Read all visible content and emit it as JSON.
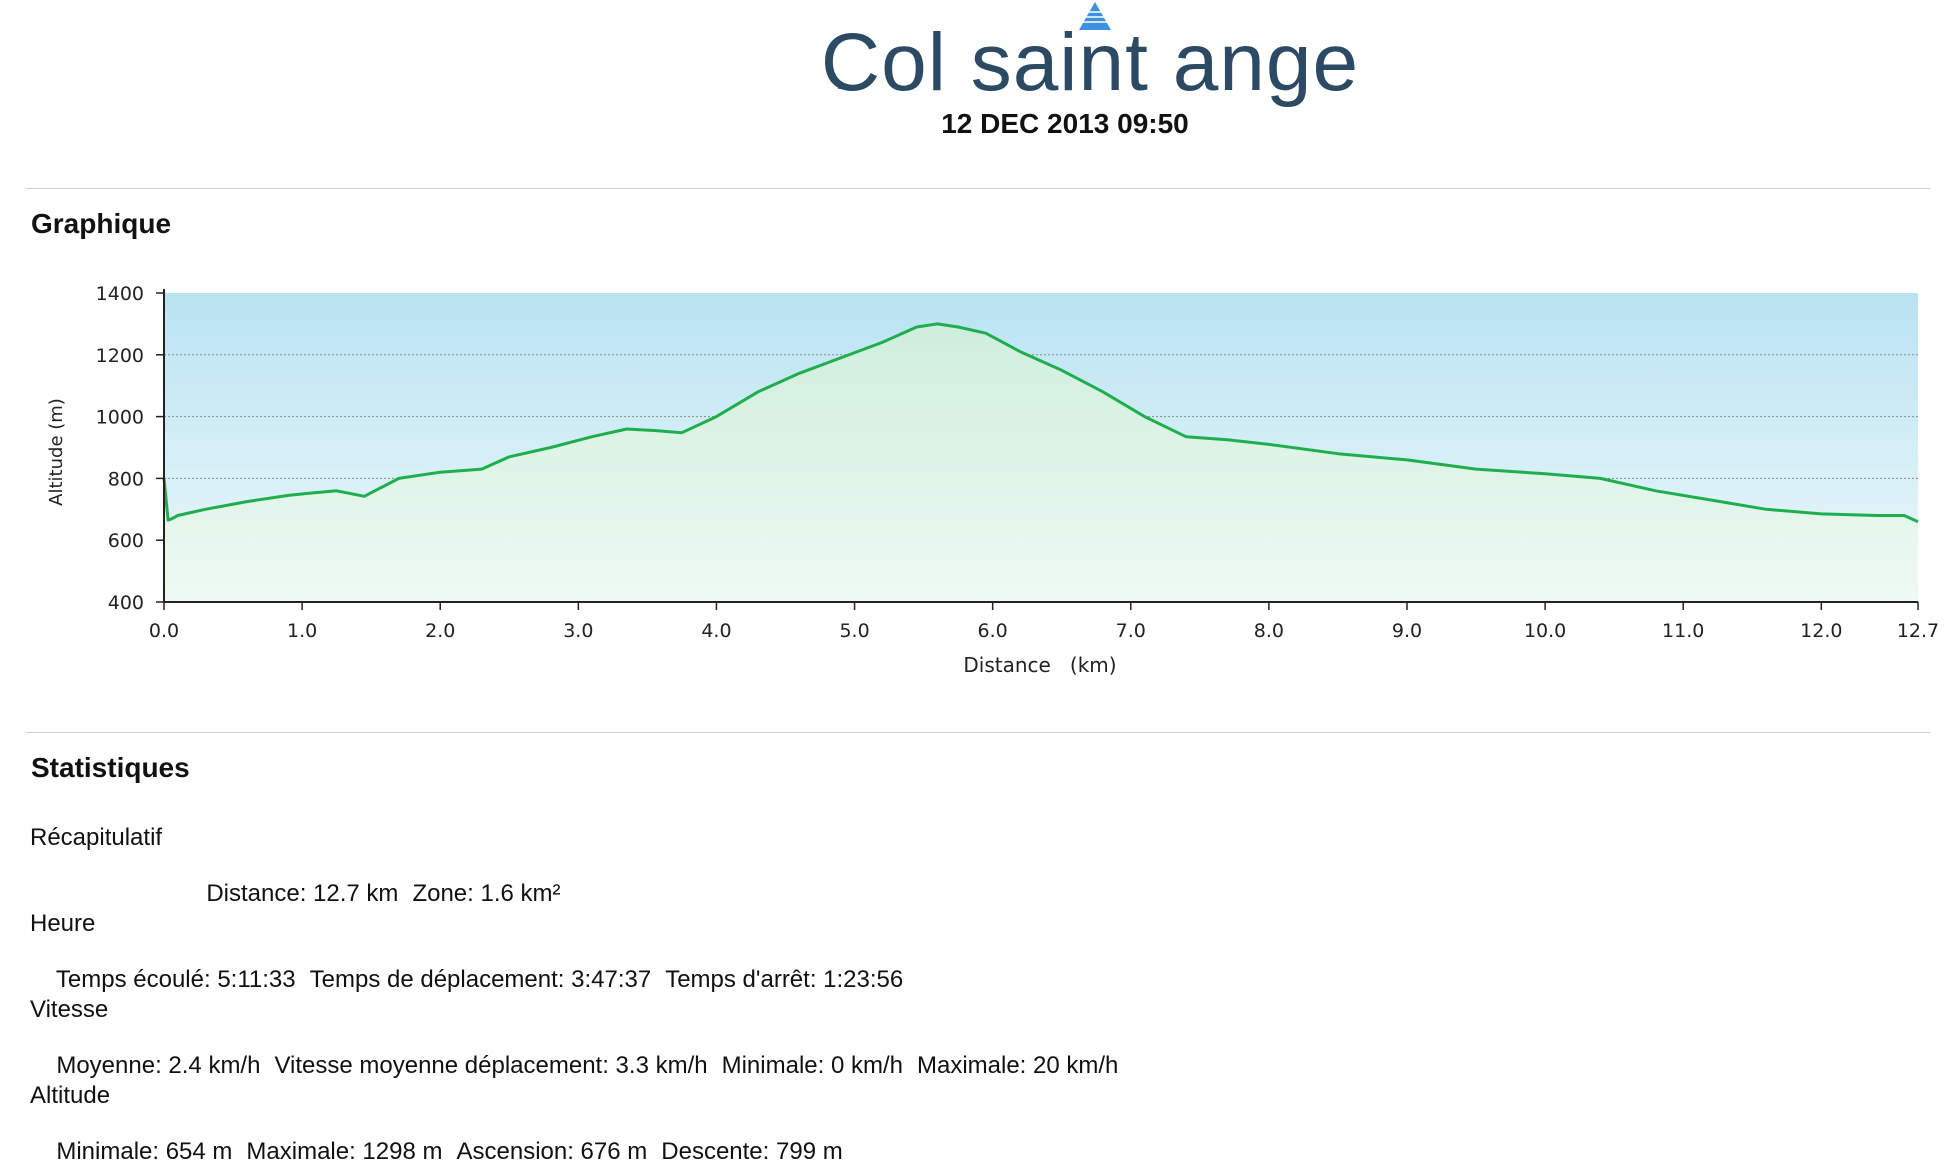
{
  "header": {
    "title": "Col saint ange",
    "date": "12 DEC 2013 09:50"
  },
  "graph_section": {
    "title": "Graphique"
  },
  "chart_data": {
    "type": "area",
    "xlabel": "Distance   (km)",
    "ylabel": "Altitude (m)",
    "xlim": [
      0,
      12.7
    ],
    "ylim": [
      400,
      1400
    ],
    "x_ticks": [
      "0.0",
      "1.0",
      "2.0",
      "3.0",
      "4.0",
      "5.0",
      "6.0",
      "7.0",
      "8.0",
      "9.0",
      "10.0",
      "11.0",
      "12.0",
      "12.7"
    ],
    "y_ticks": [
      "1400",
      "1200",
      "1000",
      "800",
      "600",
      "400"
    ],
    "grid": true,
    "colors": {
      "line": "#1fae4e",
      "fill_top": "#b9e3f2",
      "fill_area": "#daf5e4"
    },
    "series": [
      {
        "x": [
          0,
          0.03,
          0.05,
          0.1,
          0.3,
          0.6,
          0.9,
          1.05,
          1.25,
          1.45,
          1.7,
          2.0,
          2.3,
          2.5,
          2.8,
          3.1,
          3.35,
          3.55,
          3.75,
          4.0,
          4.3,
          4.6,
          4.9,
          5.2,
          5.45,
          5.6,
          5.75,
          5.95,
          6.2,
          6.5,
          6.8,
          7.1,
          7.4,
          7.7,
          8.0,
          8.5,
          9.0,
          9.5,
          10.0,
          10.4,
          10.8,
          11.2,
          11.6,
          12.0,
          12.4,
          12.6,
          12.7
        ],
        "y": [
          800,
          665,
          668,
          680,
          700,
          725,
          745,
          752,
          760,
          742,
          800,
          820,
          830,
          870,
          900,
          935,
          960,
          955,
          948,
          1000,
          1080,
          1140,
          1190,
          1240,
          1290,
          1300,
          1290,
          1270,
          1210,
          1150,
          1080,
          1000,
          935,
          925,
          910,
          880,
          860,
          830,
          815,
          800,
          760,
          730,
          700,
          685,
          680,
          680,
          660
        ]
      }
    ]
  },
  "stats_section": {
    "title": "Statistiques",
    "groups": [
      {
        "label": "Récapitulatif",
        "items": [
          "Distance: 12.7 km",
          "Zone: 1.6 km²"
        ]
      },
      {
        "label": "Heure",
        "items": [
          "Temps écoulé: 5:11:33",
          "Temps de déplacement: 3:47:37",
          "Temps d'arrêt: 1:23:56"
        ]
      },
      {
        "label": "Vitesse",
        "items": [
          "Moyenne: 2.4 km/h",
          "Vitesse moyenne déplacement: 3.3 km/h",
          "Minimale: 0 km/h",
          "Maximale: 20 km/h"
        ]
      },
      {
        "label": "Altitude",
        "items": [
          "Minimale: 654 m",
          "Maximale: 1298 m",
          "Ascension: 676 m",
          "Descente: 799 m"
        ]
      }
    ]
  }
}
